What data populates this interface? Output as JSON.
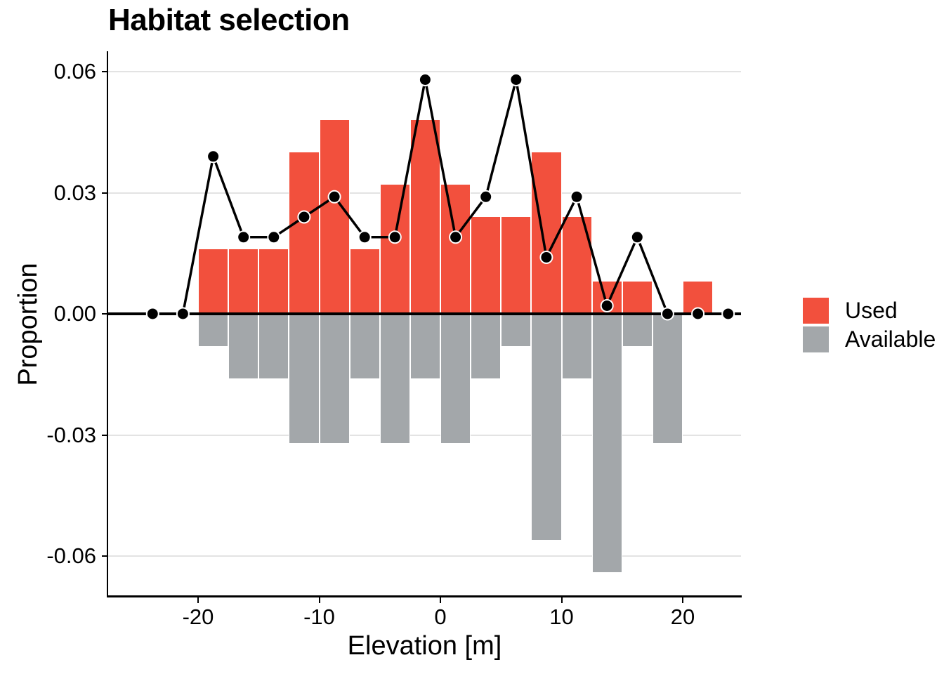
{
  "title": "Habitat selection",
  "axes": {
    "x_label": "Elevation [m]",
    "y_label": "Proportion",
    "x_ticks": [
      {
        "value": -20,
        "label": "-20"
      },
      {
        "value": -10,
        "label": "-10"
      },
      {
        "value": 0,
        "label": "0"
      },
      {
        "value": 10,
        "label": "10"
      },
      {
        "value": 20,
        "label": "20"
      }
    ],
    "y_ticks": [
      {
        "value": 0.06,
        "label": "0.06"
      },
      {
        "value": 0.03,
        "label": "0.03"
      },
      {
        "value": 0,
        "label": "0.00"
      },
      {
        "value": -0.03,
        "label": "-0.03"
      },
      {
        "value": -0.06,
        "label": "-0.06"
      }
    ]
  },
  "legend": [
    {
      "label": "Used",
      "color": "#F2503D"
    },
    {
      "label": "Available",
      "color": "#A3A7AA"
    }
  ],
  "chart_data": {
    "type": "bar",
    "subtype": "mirrored-histogram-with-line-overlay",
    "title": "Habitat selection",
    "xlabel": "Elevation [m]",
    "ylabel": "Proportion",
    "xlim": [
      -27.4,
      24.8
    ],
    "ylim": [
      -0.07,
      0.064
    ],
    "grid": "horizontal-only",
    "gridlines_y": [
      0.06,
      0.03,
      -0.03,
      -0.06
    ],
    "legend_position": "right",
    "bin_width": 2.5,
    "bin_centers": [
      -18.75,
      -16.25,
      -13.75,
      -11.25,
      -8.75,
      -6.25,
      -3.75,
      -1.25,
      1.25,
      3.75,
      6.25,
      8.75,
      11.25,
      13.75,
      16.25,
      18.75,
      21.25
    ],
    "series": [
      {
        "name": "Used",
        "role": "bars-upward",
        "color": "#F2503D",
        "values": [
          0.016,
          0.016,
          0.016,
          0.04,
          0.048,
          0.016,
          0.032,
          0.048,
          0.032,
          0.024,
          0.024,
          0.04,
          0.024,
          0.008,
          0.008,
          0,
          0.008
        ]
      },
      {
        "name": "Available",
        "role": "bars-downward-mirrored",
        "note": "magnitudes; rendered as negative proportions below zero line",
        "color": "#A3A7AA",
        "values": [
          0.008,
          0.016,
          0.016,
          0.032,
          0.032,
          0.016,
          0.032,
          0.016,
          0.032,
          0.016,
          0.008,
          0.056,
          0.016,
          0.064,
          0.008,
          0.032,
          0
        ]
      },
      {
        "name": "selection-line",
        "role": "line-with-points",
        "color": "#000000",
        "x": [
          -23.75,
          -21.25,
          -18.75,
          -16.25,
          -13.75,
          -11.25,
          -8.75,
          -6.25,
          -3.75,
          -1.25,
          1.25,
          3.75,
          6.25,
          8.75,
          11.25,
          13.75,
          16.25,
          18.75,
          21.25,
          23.75
        ],
        "y": [
          0,
          0,
          0.039,
          0.019,
          0.019,
          0.024,
          0.029,
          0.019,
          0.019,
          0.058,
          0.019,
          0.029,
          0.058,
          0.014,
          0.029,
          0.002,
          0.019,
          0,
          0,
          0
        ]
      }
    ]
  }
}
